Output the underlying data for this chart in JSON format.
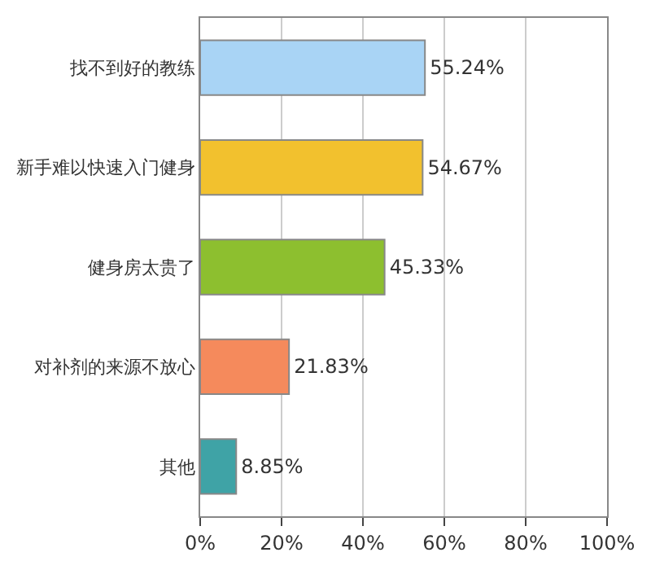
{
  "chart_data": {
    "type": "bar",
    "orientation": "horizontal",
    "categories": [
      "找不到好的教练",
      "新手难以快速入门健身",
      "健身房太贵了",
      "对补剂的来源不放心",
      "其他"
    ],
    "values": [
      55.24,
      54.67,
      45.33,
      21.83,
      8.85
    ],
    "value_labels": [
      "55.24%",
      "54.67%",
      "45.33%",
      "21.83%",
      "8.85%"
    ],
    "colors": [
      "#a9d4f5",
      "#f2c12e",
      "#8dbf2f",
      "#f58a5c",
      "#3fa3a6"
    ],
    "xlim": [
      0,
      100
    ],
    "xticks": [
      {
        "value": 0,
        "label": "0%"
      },
      {
        "value": 20,
        "label": "20%"
      },
      {
        "value": 40,
        "label": "40%"
      },
      {
        "value": 60,
        "label": "60%"
      },
      {
        "value": 80,
        "label": "80%"
      },
      {
        "value": 100,
        "label": "100%"
      }
    ],
    "grid": "x"
  }
}
